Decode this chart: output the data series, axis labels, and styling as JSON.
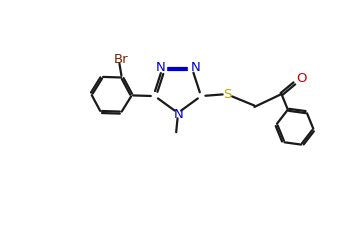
{
  "background_color": "#ffffff",
  "line_color": "#1a1a1a",
  "N_color": "#0000cd",
  "S_color": "#c8a000",
  "O_color": "#cc0000",
  "Br_color": "#7b2200",
  "line_width": 1.6,
  "font_size": 9.5,
  "figsize": [
    3.49,
    2.38
  ],
  "dpi": 100,
  "xlim": [
    0,
    10
  ],
  "ylim": [
    0,
    7
  ]
}
